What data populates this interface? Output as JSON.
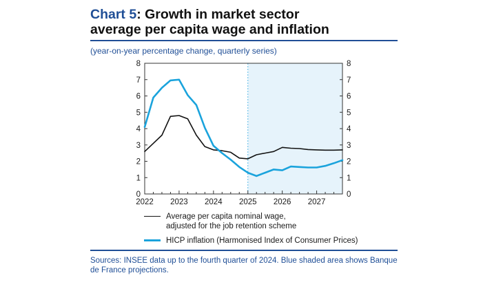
{
  "header": {
    "chart_number": "Chart 5",
    "title_rest_line1": ": Growth in market sector",
    "title_line2": "average per capita wage and inflation",
    "subtitle": "(year-on-year percentage change, quarterly series)"
  },
  "footer": {
    "sources": "Sources: INSEE data up to the fourth quarter of 2024. Blue shaded area shows Banque de France projections."
  },
  "colors": {
    "accent": "#1f4e96",
    "wage_line": "#111111",
    "hicp_line": "#1aa3dc",
    "projection_fill": "#e6f3fb"
  },
  "chart_data": {
    "type": "line",
    "x": [
      2022.0,
      2022.25,
      2022.5,
      2022.75,
      2023.0,
      2023.25,
      2023.5,
      2023.75,
      2024.0,
      2024.25,
      2024.5,
      2024.75,
      2025.0,
      2025.25,
      2025.5,
      2025.75,
      2026.0,
      2026.25,
      2026.5,
      2026.75,
      2027.0,
      2027.25,
      2027.5,
      2027.75
    ],
    "series": [
      {
        "name": "Average per capita nominal wage, adjusted for the job retention scheme",
        "legend_lines": [
          "Average per capita nominal wage,",
          "adjusted for the job retention scheme"
        ],
        "color": "#111111",
        "values": [
          2.6,
          3.1,
          3.6,
          4.75,
          4.8,
          4.6,
          3.6,
          2.9,
          2.7,
          2.65,
          2.55,
          2.2,
          2.15,
          2.4,
          2.5,
          2.6,
          2.85,
          2.8,
          2.78,
          2.72,
          2.7,
          2.68,
          2.68,
          2.7
        ]
      },
      {
        "name": "HICP inflation (Harmonised Index of Consumer Prices)",
        "legend_lines": [
          "HICP inflation (Harmonised Index of Consumer Prices)"
        ],
        "color": "#1aa3dc",
        "values": [
          4.1,
          5.9,
          6.5,
          6.95,
          7.0,
          6.05,
          5.45,
          4.05,
          2.95,
          2.5,
          2.1,
          1.65,
          1.3,
          1.1,
          1.3,
          1.5,
          1.45,
          1.68,
          1.65,
          1.62,
          1.62,
          1.72,
          1.88,
          2.07
        ]
      }
    ],
    "xlim": [
      2022,
      2027.75
    ],
    "ylim": [
      0,
      8
    ],
    "yticks": [
      0,
      1,
      2,
      3,
      4,
      5,
      6,
      7,
      8
    ],
    "xticks": [
      2022,
      2023,
      2024,
      2025,
      2026,
      2027
    ],
    "projection_start": 2025,
    "title": "Growth in market sector average per capita wage and inflation",
    "xlabel": "",
    "ylabel": "",
    "legend_position": "bottom"
  }
}
